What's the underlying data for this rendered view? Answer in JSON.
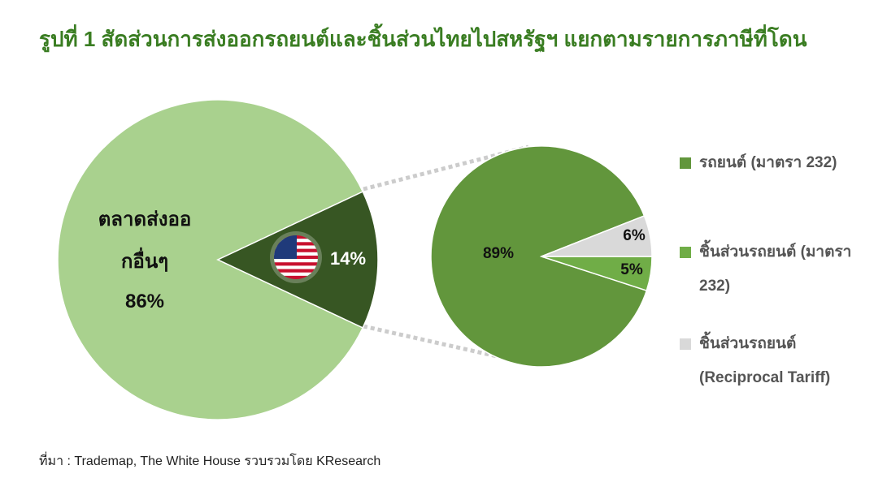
{
  "title": "รูปที่ 1 สัดส่วนการส่งออกรถยนต์และชิ้นส่วนไทยไปสหรัฐฯ แยกตามรายการภาษีที่โดน",
  "source": "ที่มา : Trademap, The White House รวบรวมโดย KResearch",
  "chart_data": [
    {
      "type": "pie",
      "categories": [
        "ตลาดส่งออกอื่นๆ",
        null
      ],
      "values": [
        86,
        14
      ],
      "value_labels": [
        "86%",
        "14%"
      ],
      "colors": [
        "#a9d18e",
        "#375623"
      ]
    },
    {
      "type": "pie",
      "categories": [
        "รถยนต์ (มาตรา 232)",
        "ชิ้นส่วนรถยนต์ (มาตรา 232)",
        "ชิ้นส่วนรถยนต์ (Reciprocal Tariff)"
      ],
      "values": [
        89,
        5,
        6
      ],
      "value_labels": [
        "89%",
        "5%",
        "6%"
      ],
      "colors": [
        "#62963c",
        "#70ad47",
        "#d9d9d9"
      ],
      "legend": "right"
    }
  ]
}
